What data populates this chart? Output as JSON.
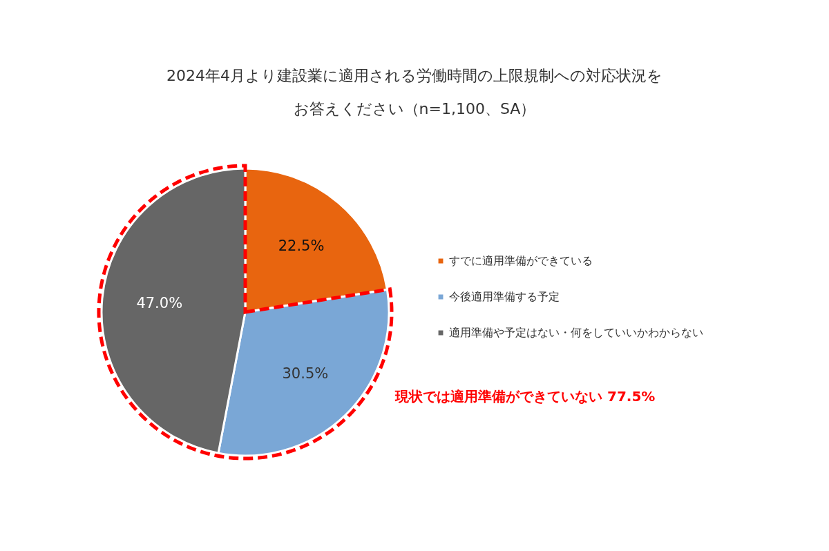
{
  "chart_data": {
    "type": "pie",
    "title": "2024年4月より建設業に適用される労働時間の上限規制への対応状況をお答えください（n=1,100、SA）",
    "categories": [
      "すでに適用準備ができている",
      "今後適用準備する予定",
      "適用準備や予定はない・何をしていいかわからない"
    ],
    "values": [
      22.5,
      30.5,
      47.0
    ],
    "colors": [
      "#e8650f",
      "#7aa7d6",
      "#666666"
    ],
    "value_labels": [
      "22.5%",
      "30.5%",
      "47.0%"
    ],
    "legend": "right",
    "annotations": [
      "現状では適用準備ができていない 77.5%"
    ]
  }
}
